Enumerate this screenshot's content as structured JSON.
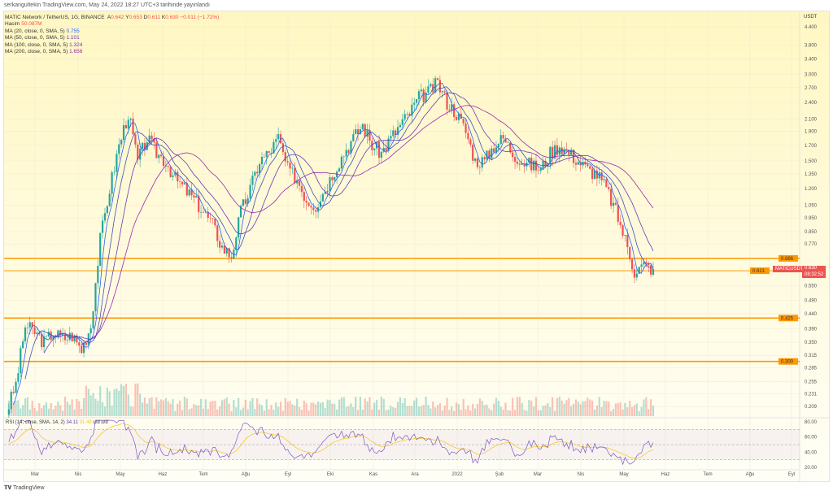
{
  "published": "serkangultekin TradingView.com, May 24, 2022 18:27 UTC+3 tarihinde yayınlandı",
  "legend": {
    "symbol": "MATIC Network / TetherUS, 1G, BINANCE",
    "a_lbl": "A",
    "a": "0.642",
    "y_lbl": "Y",
    "y": "0.653",
    "d_lbl": "D",
    "d": "0.611",
    "k_lbl": "K",
    "k": "0.630",
    "chg": "−0.011 (−1.72%)",
    "vol_lbl": "Hacim",
    "vol": "50.087M",
    "ma": [
      {
        "label": "MA (20, close, 0, SMA, 5)",
        "value": "0.755"
      },
      {
        "label": "MA (50, close, 0, SMA, 5)",
        "value": "1.101"
      },
      {
        "label": "MA (100, close, 0, SMA, 5)",
        "value": "1.324"
      },
      {
        "label": "MA (200, close, 0, SMA, 5)",
        "value": "1.658"
      }
    ]
  },
  "rsi": {
    "label": "RSI (14, close, SMA, 14, 2)",
    "value": "34.11",
    "sma": "31.49",
    "extra": "u/d u/d",
    "ticks": [
      "80.00",
      "60.00",
      "40.00",
      "20.00"
    ]
  },
  "axis": {
    "currency": "USDT",
    "ticks": [
      "4.400",
      "3.800",
      "3.400",
      "3.000",
      "2.700",
      "2.400",
      "2.100",
      "1.900",
      "1.700",
      "1.500",
      "1.350",
      "1.200",
      "1.050",
      "0.950",
      "0.850",
      "0.770",
      "0.550",
      "0.490",
      "0.440",
      "0.390",
      "0.350",
      "0.315",
      "0.285",
      "0.255",
      "0.231",
      "0.209"
    ],
    "levels": [
      "0.686",
      "0.621",
      "0.425",
      "0.300"
    ],
    "symbol_tag": "MATICUSDT",
    "price": "0.630",
    "countdown": "08:32:52"
  },
  "months": [
    "Mar",
    "Nis",
    "May",
    "Haz",
    "Tem",
    "Ağu",
    "Eyl",
    "Eki",
    "Kas",
    "Ara",
    "2022",
    "Şub",
    "Mar",
    "Nis",
    "May",
    "Haz",
    "Tem",
    "Ağu",
    "Eyl"
  ],
  "colors": {
    "up": "#26a69a",
    "down": "#ef5350",
    "level": "#ff9800",
    "ma20": "#2962ff",
    "ma50": "#3f51b5",
    "ma100": "#673ab7",
    "ma200": "#9c27b0"
  },
  "chart_data": {
    "type": "candlestick",
    "weekly_close_approx": [
      0.2,
      0.25,
      0.4,
      0.38,
      0.35,
      0.38,
      0.36,
      0.37,
      0.33,
      0.4,
      0.8,
      1.2,
      1.7,
      2.2,
      1.5,
      1.8,
      1.6,
      1.5,
      1.3,
      1.2,
      1.1,
      1.0,
      0.9,
      0.75,
      0.7,
      1.0,
      1.2,
      1.5,
      1.6,
      1.8,
      1.4,
      1.3,
      1.1,
      1.05,
      1.2,
      1.4,
      1.6,
      1.8,
      2.0,
      1.7,
      1.6,
      1.8,
      2.0,
      2.2,
      2.5,
      2.6,
      2.8,
      2.4,
      2.2,
      1.9,
      1.5,
      1.5,
      1.7,
      1.8,
      1.6,
      1.5,
      1.45,
      1.4,
      1.6,
      1.7,
      1.6,
      1.5,
      1.4,
      1.35,
      1.2,
      1.0,
      0.8,
      0.62,
      0.65,
      0.63
    ]
  },
  "brand": "TradingView"
}
